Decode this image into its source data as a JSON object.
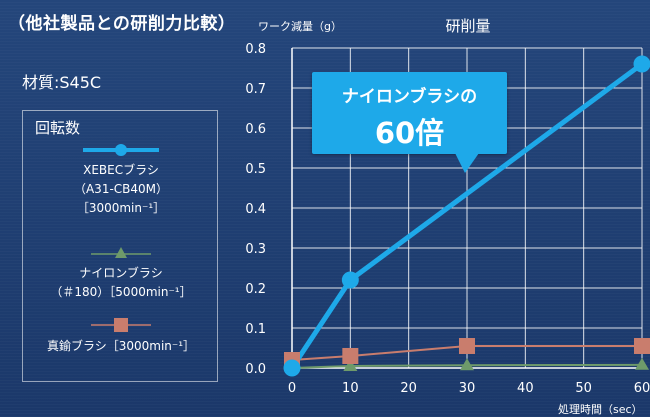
{
  "heading": "（他社製品との研削力比較）",
  "material_label": "材質:S45C",
  "legend": {
    "title": "回転数",
    "items": [
      {
        "lines": [
          "XEBECブラシ",
          "（A31-CB40M）",
          "［3000min⁻¹］"
        ]
      },
      {
        "lines": [
          "ナイロンブラシ",
          "（＃180）［5000min⁻¹］"
        ]
      },
      {
        "lines": [
          "真鍮ブラシ［3000min⁻¹］"
        ]
      }
    ]
  },
  "callout": {
    "line1": "ナイロンブラシの",
    "line2": "60倍"
  },
  "colors": {
    "xebec": "#1ea9e9",
    "nylon": "#6e9a6a",
    "brass": "#c97d6d",
    "grid": "#ffffff",
    "axis": "#ffffff"
  },
  "chart_data": {
    "type": "line",
    "title": "研削量",
    "ylabel": "ワーク減量（g）",
    "xlabel": "処理時間（sec）",
    "xlim": [
      0,
      60
    ],
    "ylim": [
      0,
      0.8
    ],
    "x_ticks": [
      0,
      10,
      20,
      30,
      40,
      50,
      60
    ],
    "y_ticks": [
      "0.0",
      "0.1",
      "0.2",
      "0.3",
      "0.4",
      "0.5",
      "0.6",
      "0.7",
      "0.8"
    ],
    "grid": true,
    "series": [
      {
        "key": "xebec",
        "marker": "circle",
        "x": [
          0,
          10,
          60
        ],
        "y": [
          0.0,
          0.22,
          0.76
        ]
      },
      {
        "key": "nylon",
        "marker": "triangle",
        "x": [
          0,
          10,
          30,
          60
        ],
        "y": [
          0.0,
          0.005,
          0.007,
          0.008
        ]
      },
      {
        "key": "brass",
        "marker": "square",
        "x": [
          0,
          10,
          30,
          60
        ],
        "y": [
          0.02,
          0.03,
          0.055,
          0.055
        ]
      }
    ]
  }
}
